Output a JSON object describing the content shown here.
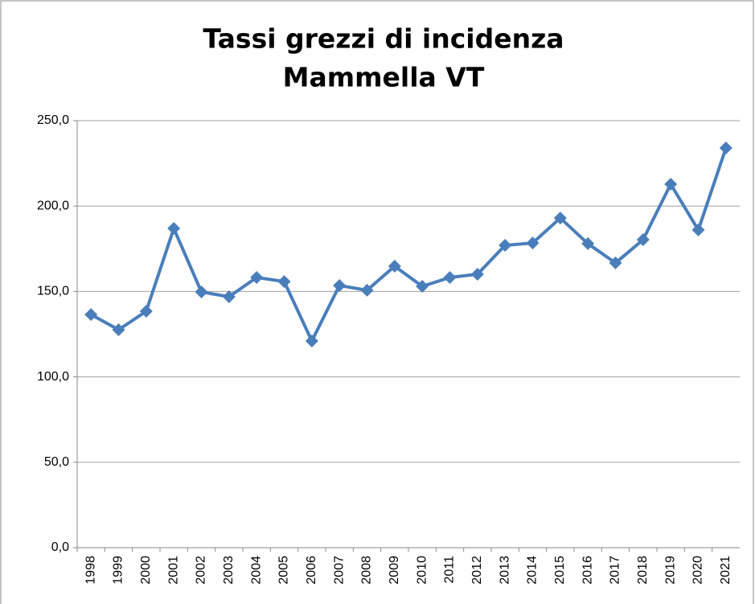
{
  "chart_data": {
    "type": "line",
    "title": [
      "Tassi grezzi di incidenza",
      "Mammella VT"
    ],
    "categories": [
      "1998",
      "1999",
      "2000",
      "2001",
      "2002",
      "2003",
      "2004",
      "2005",
      "2006",
      "2007",
      "2008",
      "2009",
      "2010",
      "2011",
      "2012",
      "2013",
      "2014",
      "2015",
      "2016",
      "2017",
      "2018",
      "2019",
      "2020",
      "2021"
    ],
    "values": [
      136.5,
      127.6,
      138.4,
      186.9,
      149.7,
      146.9,
      158.2,
      155.8,
      121.0,
      153.5,
      150.7,
      164.8,
      153.0,
      158.2,
      160.1,
      177.0,
      178.4,
      193.0,
      178.0,
      166.7,
      180.3,
      212.8,
      186.0,
      234.0
    ],
    "color": "#4a7ebb",
    "ylim": [
      0,
      250
    ],
    "yticks": [
      {
        "value": 0,
        "label": "0,0"
      },
      {
        "value": 50,
        "label": "50,0"
      },
      {
        "value": 100,
        "label": "100,0"
      },
      {
        "value": 150,
        "label": "150,0"
      },
      {
        "value": 200,
        "label": "200,0"
      },
      {
        "value": 250,
        "label": "250,0"
      }
    ],
    "grid": true
  }
}
